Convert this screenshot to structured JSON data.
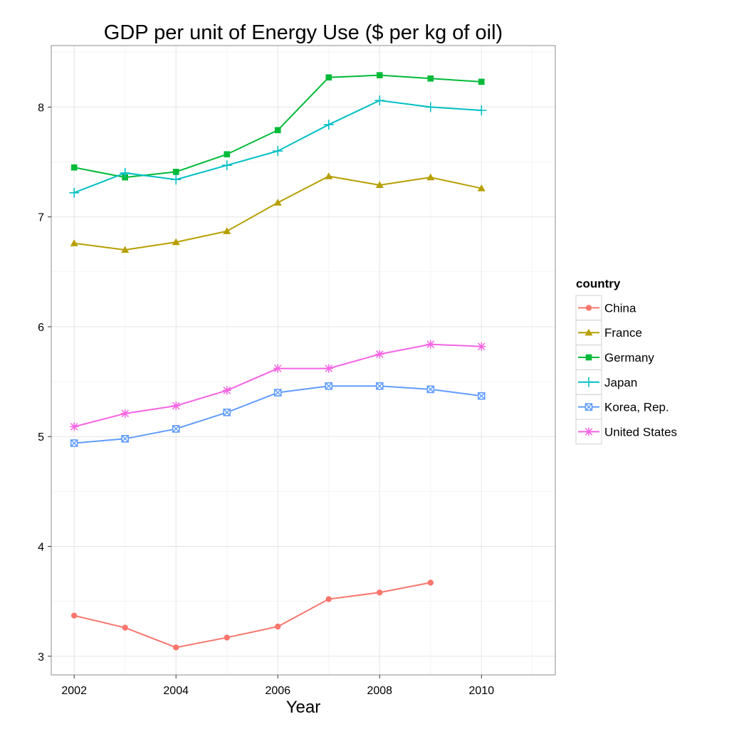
{
  "chart_data": {
    "type": "line",
    "title": "GDP per unit of Energy Use ($ per kg of oil)",
    "xlabel": "Year",
    "ylabel": "",
    "xlim": [
      2001.55,
      2011.45
    ],
    "ylim": [
      2.83,
      8.56
    ],
    "x_ticks": [
      2002,
      2004,
      2006,
      2008,
      2010
    ],
    "y_ticks": [
      3,
      4,
      5,
      6,
      7,
      8
    ],
    "grid": true,
    "legend": {
      "title": "country",
      "position": "right"
    },
    "series": [
      {
        "name": "China",
        "color": "#F8766D",
        "marker": "circle",
        "x": [
          2002,
          2003,
          2004,
          2005,
          2006,
          2007,
          2008,
          2009
        ],
        "values": [
          3.37,
          3.26,
          3.08,
          3.17,
          3.27,
          3.52,
          3.58,
          3.67
        ]
      },
      {
        "name": "France",
        "color": "#B79F00",
        "marker": "triangle",
        "x": [
          2002,
          2003,
          2004,
          2005,
          2006,
          2007,
          2008,
          2009,
          2010
        ],
        "values": [
          6.76,
          6.7,
          6.77,
          6.87,
          7.13,
          7.37,
          7.29,
          7.36,
          7.26
        ]
      },
      {
        "name": "Germany",
        "color": "#00BA38",
        "marker": "square",
        "x": [
          2002,
          2003,
          2004,
          2005,
          2006,
          2007,
          2008,
          2009,
          2010
        ],
        "values": [
          7.45,
          7.36,
          7.41,
          7.57,
          7.79,
          8.27,
          8.29,
          8.26,
          8.23
        ]
      },
      {
        "name": "Japan",
        "color": "#00BFC4",
        "marker": "plus",
        "x": [
          2002,
          2003,
          2004,
          2005,
          2006,
          2007,
          2008,
          2009,
          2010
        ],
        "values": [
          7.22,
          7.4,
          7.34,
          7.47,
          7.6,
          7.84,
          8.06,
          8.0,
          7.97
        ]
      },
      {
        "name": "Korea, Rep.",
        "color": "#619CFF",
        "marker": "boxcross",
        "x": [
          2002,
          2003,
          2004,
          2005,
          2006,
          2007,
          2008,
          2009,
          2010
        ],
        "values": [
          4.94,
          4.98,
          5.07,
          5.22,
          5.4,
          5.46,
          5.46,
          5.43,
          5.37
        ]
      },
      {
        "name": "United States",
        "color": "#F564E3",
        "marker": "asterisk",
        "x": [
          2002,
          2003,
          2004,
          2005,
          2006,
          2007,
          2008,
          2009,
          2010
        ],
        "values": [
          5.09,
          5.21,
          5.28,
          5.42,
          5.62,
          5.62,
          5.75,
          5.84,
          5.82
        ]
      }
    ]
  }
}
